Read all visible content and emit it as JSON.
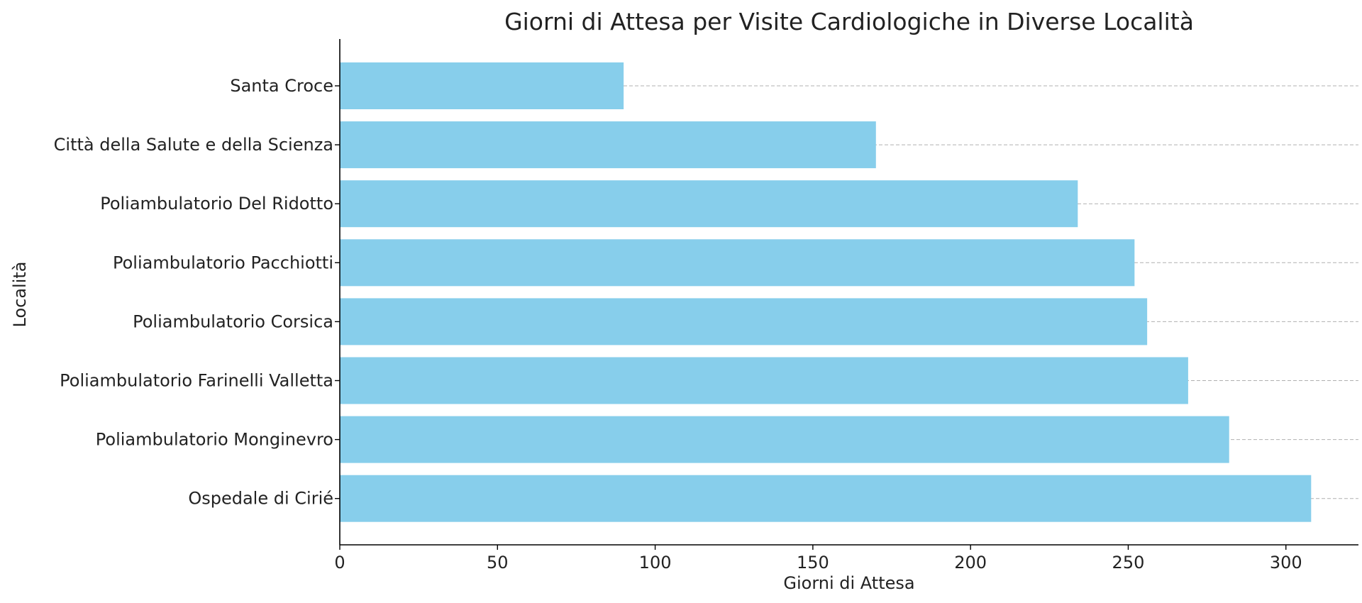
{
  "chart_data": {
    "type": "bar",
    "orientation": "horizontal",
    "title": "Giorni di Attesa per Visite Cardiologiche in Diverse Località",
    "xlabel": "Giorni di Attesa",
    "ylabel": "Località",
    "categories": [
      "Santa Croce",
      "Città della Salute e della Scienza",
      "Poliambulatorio Del Ridotto",
      "Poliambulatorio Pacchiotti",
      "Poliambulatorio Corsica",
      "Poliambulatorio Farinelli Valletta",
      "Poliambulatorio Monginevro",
      "Ospedale di Cirié"
    ],
    "values": [
      90,
      170,
      234,
      252,
      256,
      269,
      282,
      308
    ],
    "xlim": [
      0,
      323
    ],
    "xticks": [
      0,
      50,
      100,
      150,
      200,
      250,
      300
    ],
    "grid": "horizontal-dashed",
    "bar_color": "#87ceeb",
    "grid_color": "#b0b0b0",
    "axis_color": "#000000"
  }
}
